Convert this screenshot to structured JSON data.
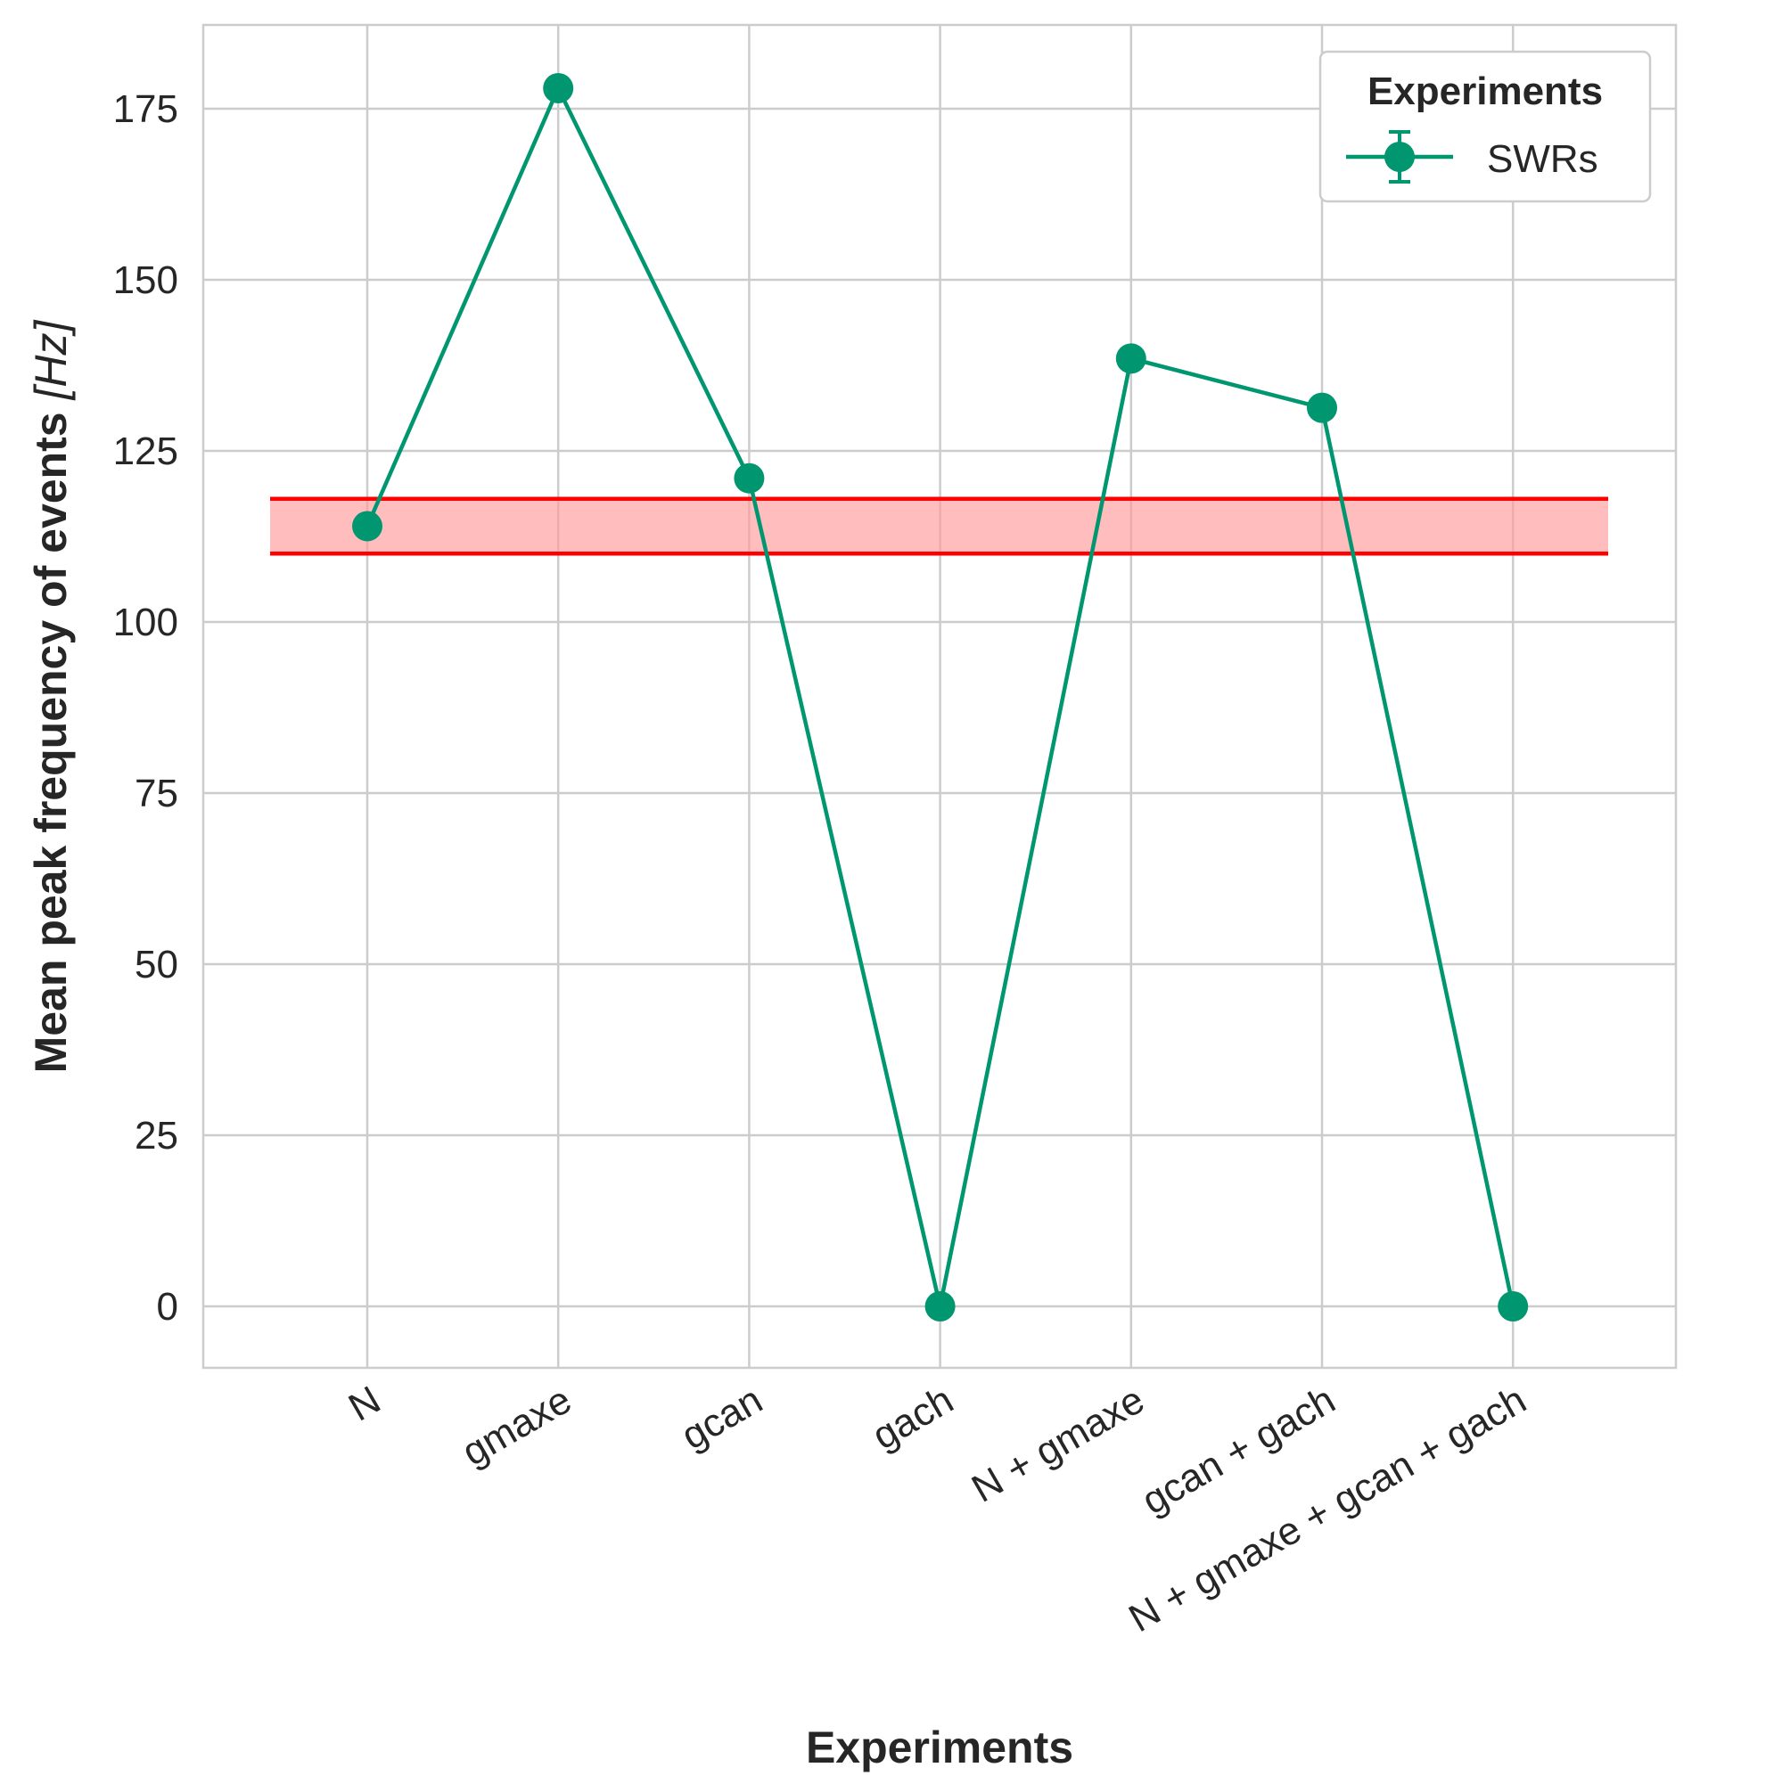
{
  "chart_data": {
    "type": "line",
    "title": "",
    "xlabel": "Experiments",
    "ylabel_main": "Mean peak frequency of events ",
    "ylabel_unit": "[Hz]",
    "categories": [
      "N",
      "gmaxe",
      "gcan",
      "gach",
      "N + gmaxe",
      "gcan + gach",
      "N + gmaxe + gcan + gach"
    ],
    "series": [
      {
        "name": "SWRs",
        "values": [
          114,
          178,
          121,
          0,
          138.5,
          131.3,
          0
        ],
        "color": "#009670"
      }
    ],
    "reference_band": {
      "low": 110,
      "high": 118,
      "color": "#ff0000",
      "fill": "#ff9999"
    },
    "yticks": [
      0,
      25,
      50,
      75,
      100,
      125,
      150,
      175
    ],
    "ylim": [
      -9,
      187
    ],
    "grid": true,
    "legend": {
      "title": "Experiments",
      "placement": "top-right"
    }
  }
}
